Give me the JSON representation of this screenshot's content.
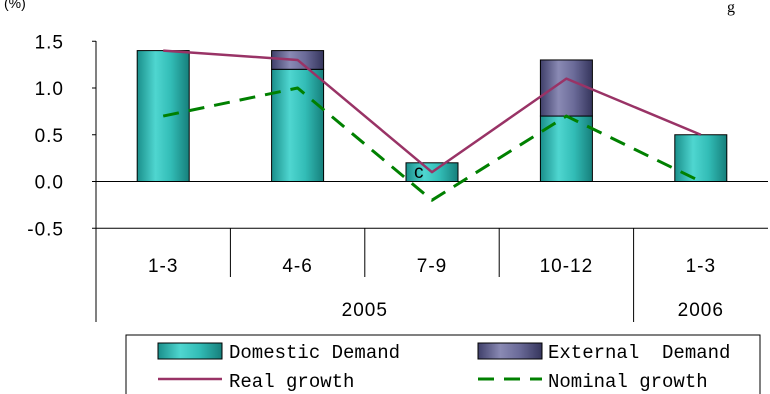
{
  "chart_data": {
    "type": "bar",
    "unit_label": "(%)",
    "top_right_text": "g",
    "categories": [
      "1-3",
      "4-6",
      "7-9",
      "10-12",
      "1-3"
    ],
    "years": [
      {
        "label": "2005",
        "span": [
          0,
          3
        ]
      },
      {
        "label": "2006",
        "span": [
          4,
          4
        ]
      }
    ],
    "ylim": [
      -0.5,
      1.5
    ],
    "yticks": [
      "1.5",
      "1.0",
      "0.5",
      "0.0",
      "-0.5"
    ],
    "series": [
      {
        "name": "Domestic Demand",
        "type": "bar",
        "color": "#2fb5b0",
        "values": [
          1.4,
          1.2,
          0.2,
          0.7,
          0.5
        ]
      },
      {
        "name": "External Demand",
        "type": "bar",
        "color": "#5e5e8c",
        "values": [
          0.0,
          0.2,
          0.0,
          0.6,
          0.0
        ]
      },
      {
        "name": "Real growth",
        "type": "line",
        "color": "#993366",
        "values": [
          1.4,
          1.3,
          0.1,
          1.1,
          0.5
        ]
      },
      {
        "name": "Nominal growth",
        "type": "line",
        "color": "#008000",
        "dashed": true,
        "values": [
          0.7,
          1.0,
          -0.2,
          0.7,
          0.0
        ]
      }
    ],
    "bar_annotation": {
      "index": 2,
      "text": "c"
    },
    "legend": {
      "placement": "bottom",
      "items": [
        {
          "label": "Domestic Demand",
          "kind": "bar",
          "color": "#2fb5b0"
        },
        {
          "label": "External  Demand",
          "kind": "bar",
          "color": "#5e5e8c"
        },
        {
          "label": "Real growth",
          "kind": "line",
          "color": "#993366"
        },
        {
          "label": "Nominal growth",
          "kind": "dashed",
          "color": "#008000"
        }
      ]
    }
  }
}
